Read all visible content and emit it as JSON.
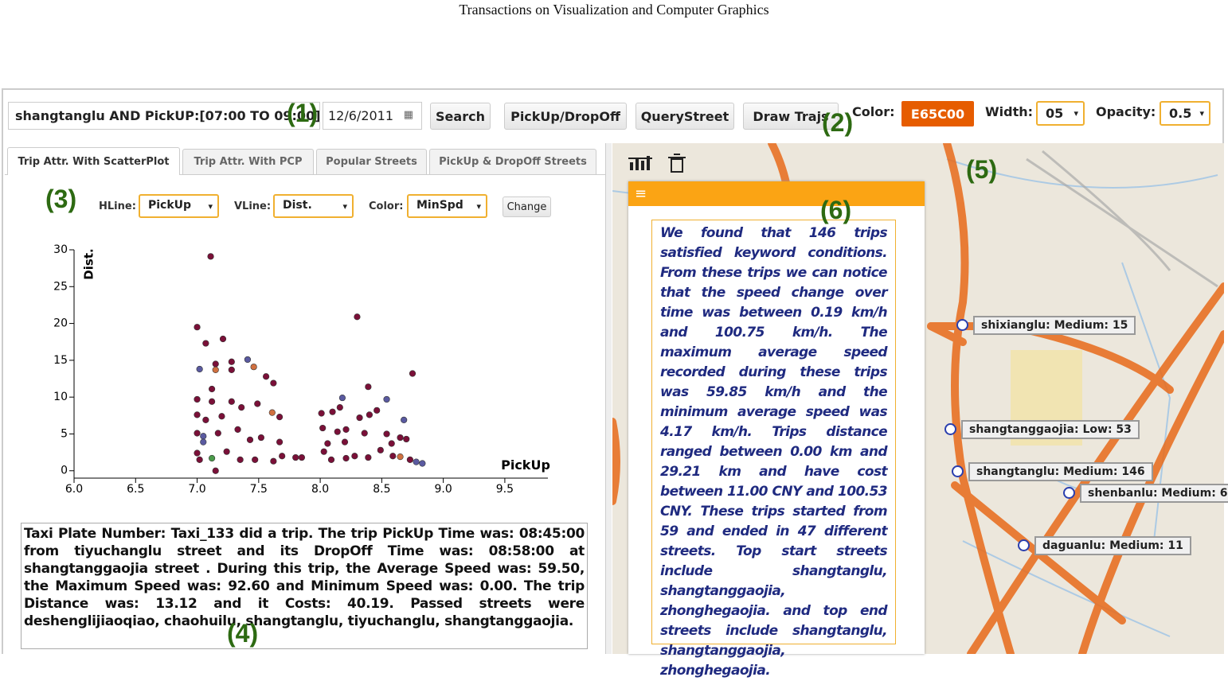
{
  "header": {
    "title": "Transactions on Visualization and Computer Graphics"
  },
  "toolbar": {
    "query": "shangtanglu AND PickUP:[07:00 TO 09:00]",
    "date": "12/6/2011",
    "buttons": [
      "Search",
      "PickUp/DropOff",
      "QueryStreet",
      "Draw Trajs"
    ],
    "color_label": "Color:",
    "color_value": "E65C00",
    "width_label": "Width:",
    "width_value": "05",
    "opacity_label": "Opacity:",
    "opacity_value": "0.5"
  },
  "annotations": [
    "(1)",
    "(2)",
    "(3)",
    "(4)",
    "(5)",
    "(6)"
  ],
  "tabs": [
    "Trip Attr. With ScatterPlot",
    "Trip Attr. With PCP",
    "Popular Streets",
    "PickUp & DropOff Streets"
  ],
  "controls": {
    "hline_label": "HLine:",
    "hline": "PickUp",
    "vline_label": "VLine:",
    "vline": "Dist.",
    "color_label": "Color:",
    "color": "MinSpd",
    "button": "Change"
  },
  "chart_data": {
    "type": "scatter",
    "x_label": "PickUp",
    "y_label": "Dist.",
    "xlim": [
      6.0,
      9.85
    ],
    "ylim": [
      -1,
      30
    ],
    "xticks": [
      {
        "value": 6.0,
        "label": "6.0"
      },
      {
        "value": 6.5,
        "label": "6.5"
      },
      {
        "value": 7.0,
        "label": "7.0"
      },
      {
        "value": 7.5,
        "label": "7.5"
      },
      {
        "value": 8.0,
        "label": "8.0"
      },
      {
        "value": 8.5,
        "label": "8.5"
      },
      {
        "value": 9.0,
        "label": "9.0"
      },
      {
        "value": 9.5,
        "label": "9.5"
      }
    ],
    "yticks": [
      0,
      5,
      10,
      15,
      20,
      25,
      30
    ],
    "x": [
      7.11,
      8.3,
      7.0,
      7.07,
      7.21,
      7.02,
      7.15,
      7.15,
      7.28,
      7.28,
      7.41,
      7.46,
      7.56,
      7.62,
      8.75,
      8.39,
      8.18,
      8.54,
      7.0,
      7.12,
      7.12,
      7.28,
      7.36,
      7.49,
      7.61,
      7.67,
      7.0,
      7.07,
      7.2,
      8.01,
      8.1,
      8.16,
      8.32,
      8.4,
      8.46,
      8.68,
      7.0,
      7.05,
      7.17,
      7.33,
      7.43,
      7.52,
      7.67,
      8.02,
      8.14,
      8.21,
      8.36,
      8.54,
      8.65,
      8.7,
      7.0,
      7.02,
      7.12,
      7.24,
      7.35,
      7.47,
      7.62,
      7.69,
      7.8,
      7.85,
      8.03,
      8.09,
      8.21,
      8.28,
      8.39,
      8.49,
      8.59,
      8.65,
      8.73,
      8.78,
      8.83,
      7.15,
      7.05,
      8.06,
      8.2,
      8.58
    ],
    "y": [
      29.1,
      20.9,
      19.5,
      17.3,
      17.9,
      13.8,
      14.5,
      13.7,
      14.8,
      13.7,
      15.1,
      14.1,
      12.8,
      11.9,
      13.2,
      11.4,
      9.9,
      9.7,
      9.7,
      11.1,
      9.4,
      9.4,
      8.6,
      9.1,
      7.9,
      7.3,
      7.6,
      6.9,
      7.4,
      7.8,
      8.0,
      8.6,
      7.2,
      7.6,
      8.2,
      6.9,
      5.1,
      4.7,
      5.1,
      5.6,
      4.2,
      4.5,
      3.9,
      5.8,
      5.3,
      5.6,
      5.1,
      5.0,
      4.5,
      4.3,
      2.4,
      1.5,
      1.7,
      2.6,
      1.5,
      1.5,
      1.3,
      2.0,
      1.8,
      1.8,
      2.6,
      1.5,
      1.7,
      2.0,
      1.8,
      2.8,
      2.0,
      1.9,
      1.5,
      1.2,
      1.0,
      0.0,
      3.9,
      3.7,
      3.9,
      3.7
    ],
    "colors": [
      "#7a1038",
      "#7a1038",
      "#7a1038",
      "#7a1038",
      "#7a1038",
      "#5a5aa0",
      "#7a1038",
      "#d07040",
      "#7a1038",
      "#7a1038",
      "#5a5aa0",
      "#d07040",
      "#7a1038",
      "#7a1038",
      "#7a1038",
      "#7a1038",
      "#5a5aa0",
      "#5a5aa0",
      "#7a1038",
      "#7a1038",
      "#7a1038",
      "#7a1038",
      "#7a1038",
      "#7a1038",
      "#d07040",
      "#7a1038",
      "#7a1038",
      "#7a1038",
      "#7a1038",
      "#7a1038",
      "#7a1038",
      "#7a1038",
      "#7a1038",
      "#7a1038",
      "#7a1038",
      "#5a5aa0",
      "#7a1038",
      "#5a5aa0",
      "#7a1038",
      "#7a1038",
      "#7a1038",
      "#7a1038",
      "#7a1038",
      "#7a1038",
      "#7a1038",
      "#7a1038",
      "#7a1038",
      "#7a1038",
      "#7a1038",
      "#7a1038",
      "#7a1038",
      "#7a1038",
      "#4a9a4a",
      "#7a1038",
      "#7a1038",
      "#7a1038",
      "#7a1038",
      "#7a1038",
      "#7a1038",
      "#7a1038",
      "#7a1038",
      "#7a1038",
      "#7a1038",
      "#7a1038",
      "#7a1038",
      "#7a1038",
      "#7a1038",
      "#d07040",
      "#7a1038",
      "#5a5aa0",
      "#5a5aa0",
      "#7a1038",
      "#5a5aa0",
      "#7a1038",
      "#7a1038",
      "#7a1038"
    ]
  },
  "trip_text": "Taxi Plate Number: Taxi_133 did a trip. The trip PickUp Time was: 08:45:00 from tiyuchanglu street and its DropOff Time was: 08:58:00 at shangtanggaojia street . During this trip, the Average Speed was: 59.50, the Maximum Speed was: 92.60 and Minimum Speed was: 0.00. The trip Distance was: 13.12 and it Costs: 40.19. Passed streets were deshenglijiaoqiao, chaohuilu, shangtanglu, tiyuchanglu, shangtanggaojia.",
  "summary_text": "We found that 146 trips satisfied keyword conditions. From these trips we can notice that the speed change over time was between 0.19 km/h and 100.75 km/h. The maximum average speed recorded during these trips was 59.85 km/h and the minimum average speed was 4.17 km/h. Trips distance ranged between 0.00 km and 29.21 km and have cost between 11.00 CNY and 100.53 CNY. These trips started from 59 and ended in 47 different streets. Top start streets include shangtanglu, shangtanggaojia, zhonghegaojia. and top end streets include shangtanglu, shangtanggaojia, zhonghegaojia.",
  "map": {
    "labels": [
      "shixianglu: Medium: 15",
      "shangtanggaojia: Low: 53",
      "shangtanglu: Medium: 146",
      "shenbanlu: Medium: 6",
      "daguanlu: Medium: 11"
    ]
  }
}
